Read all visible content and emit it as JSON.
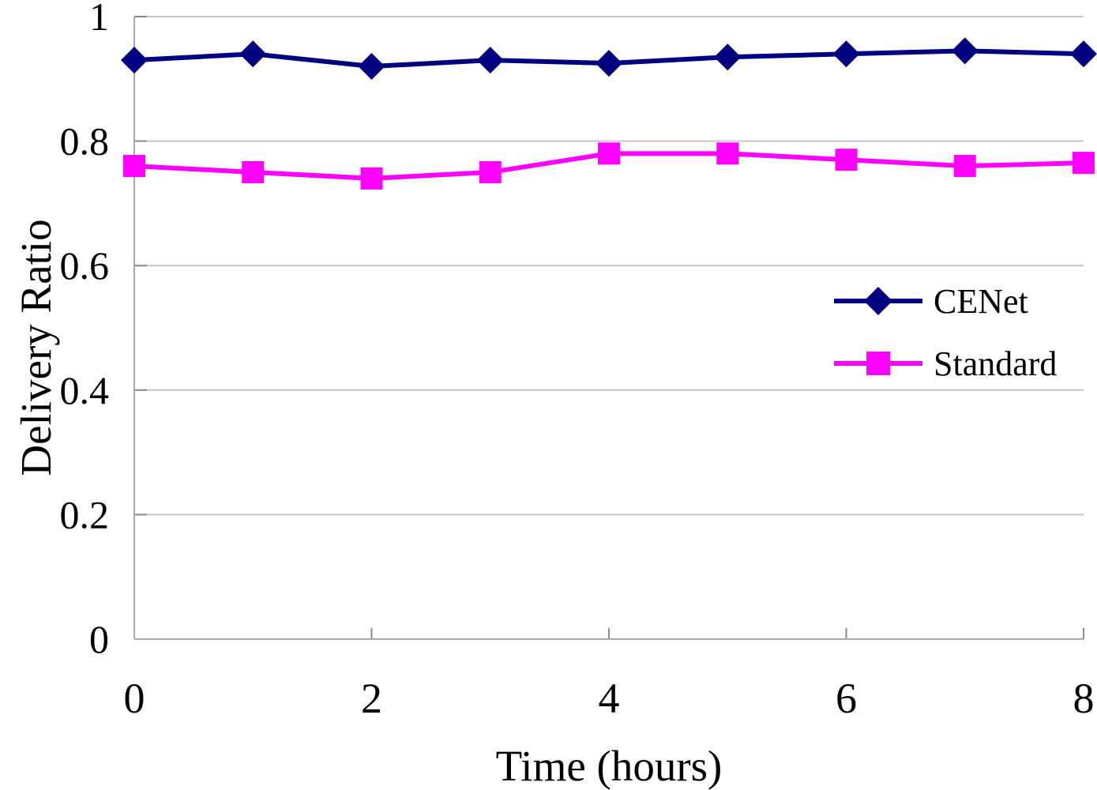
{
  "chart_data": {
    "type": "line",
    "x": [
      0,
      1,
      2,
      3,
      4,
      5,
      6,
      7,
      8
    ],
    "series": [
      {
        "name": "CENet",
        "color": "#000080",
        "marker": "diamond",
        "values": [
          0.93,
          0.94,
          0.92,
          0.93,
          0.925,
          0.935,
          0.94,
          0.945,
          0.94
        ]
      },
      {
        "name": "Standard",
        "color": "#FF00FF",
        "marker": "square",
        "values": [
          0.76,
          0.75,
          0.74,
          0.75,
          0.78,
          0.78,
          0.77,
          0.76,
          0.765
        ]
      }
    ],
    "title": "",
    "xlabel": "Time (hours)",
    "ylabel": "Delivery Ratio",
    "xlim": [
      0,
      8
    ],
    "ylim": [
      0,
      1
    ],
    "xticks": {
      "values": [
        0,
        2,
        4,
        6,
        8
      ],
      "labels": [
        "0",
        "2",
        "4",
        "6",
        "8"
      ]
    },
    "yticks": {
      "values": [
        0,
        0.2,
        0.4,
        0.6,
        0.8,
        1
      ],
      "labels": [
        "0",
        "0.2",
        "0.4",
        "0.6",
        "0.8",
        "1"
      ]
    },
    "grid": "horizontal",
    "legend_position": "middle-right",
    "colors": {
      "background": "#FFFFFF",
      "gridline": "#C6C6C6",
      "axis": "#A8A8A8",
      "tick": "#8A8A8A",
      "text": "#000000"
    }
  }
}
